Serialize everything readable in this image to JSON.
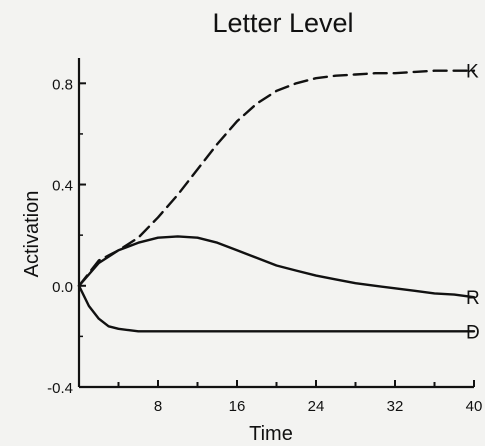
{
  "chart_data": {
    "type": "line",
    "title": "Letter Level",
    "xlabel": "Time",
    "ylabel": "Activation",
    "xlim": [
      0,
      40
    ],
    "ylim": [
      -0.4,
      0.9
    ],
    "x_ticks": [
      8,
      16,
      24,
      32,
      40
    ],
    "y_ticks": [
      0.8,
      0.4,
      0.0,
      -0.4
    ],
    "y_tick_labels": [
      "0.8",
      "0.4",
      "0.0",
      "-0.4"
    ],
    "grid": false,
    "legend": "none",
    "series": [
      {
        "name": "K",
        "style": "dashed",
        "x": [
          0,
          2,
          4,
          6,
          8,
          10,
          12,
          14,
          16,
          18,
          20,
          22,
          24,
          26,
          28,
          30,
          32,
          34,
          36,
          38,
          40
        ],
        "y": [
          0.0,
          0.1,
          0.14,
          0.19,
          0.27,
          0.36,
          0.46,
          0.56,
          0.65,
          0.72,
          0.77,
          0.8,
          0.82,
          0.83,
          0.835,
          0.84,
          0.84,
          0.845,
          0.85,
          0.85,
          0.85
        ]
      },
      {
        "name": "R",
        "style": "solid",
        "x": [
          0,
          2,
          4,
          6,
          8,
          10,
          12,
          14,
          16,
          18,
          20,
          22,
          24,
          26,
          28,
          30,
          32,
          34,
          36,
          38,
          40
        ],
        "y": [
          0.0,
          0.09,
          0.14,
          0.17,
          0.19,
          0.195,
          0.19,
          0.17,
          0.14,
          0.11,
          0.08,
          0.06,
          0.04,
          0.025,
          0.01,
          0.0,
          -0.01,
          -0.02,
          -0.03,
          -0.035,
          -0.045
        ]
      },
      {
        "name": "D",
        "style": "solid",
        "x": [
          0,
          1,
          2,
          3,
          4,
          5,
          6,
          8,
          12,
          16,
          20,
          24,
          28,
          32,
          36,
          40
        ],
        "y": [
          0.0,
          -0.08,
          -0.13,
          -0.16,
          -0.17,
          -0.175,
          -0.18,
          -0.18,
          -0.18,
          -0.18,
          -0.18,
          -0.18,
          -0.18,
          -0.18,
          -0.18,
          -0.18
        ]
      }
    ]
  }
}
